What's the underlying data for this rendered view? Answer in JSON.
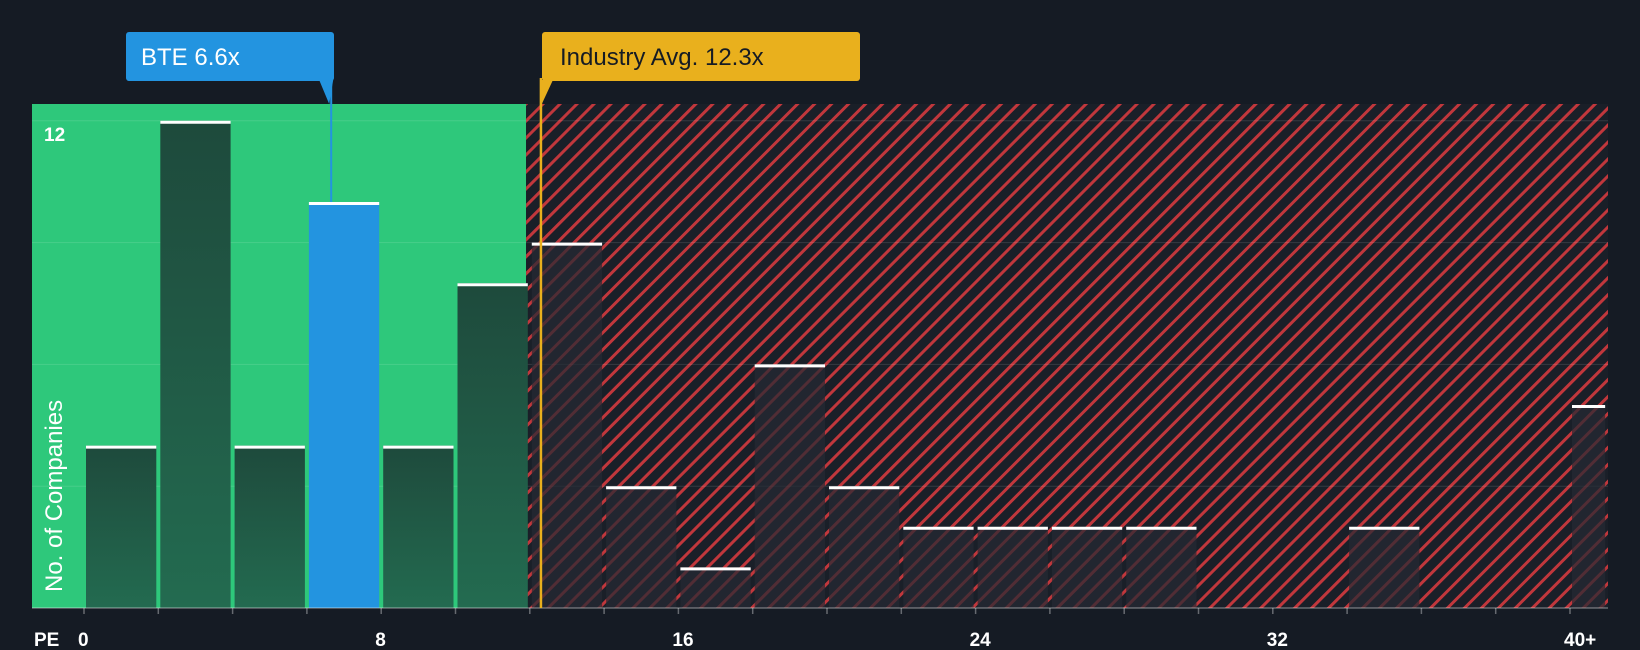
{
  "chart_data": {
    "type": "bar",
    "title": "",
    "xlabel": "PE",
    "ylabel": "No. of Companies",
    "xlim": [
      0,
      41
    ],
    "ylim": [
      0,
      12.4
    ],
    "x_ticks": [
      {
        "value": 0,
        "label": "0"
      },
      {
        "value": 8,
        "label": "8"
      },
      {
        "value": 16,
        "label": "16"
      },
      {
        "value": 24,
        "label": "24"
      },
      {
        "value": 32,
        "label": "32"
      },
      {
        "value": 40,
        "label": "40+"
      }
    ],
    "y_ticks": [
      {
        "value": 12,
        "label": "12"
      }
    ],
    "bin_width": 2,
    "bins": [
      {
        "start": 0,
        "end": 2,
        "count": 4
      },
      {
        "start": 2,
        "end": 4,
        "count": 12
      },
      {
        "start": 4,
        "end": 6,
        "count": 4
      },
      {
        "start": 6,
        "end": 8,
        "count": 10,
        "highlight": true
      },
      {
        "start": 8,
        "end": 10,
        "count": 4
      },
      {
        "start": 10,
        "end": 12,
        "count": 8
      },
      {
        "start": 12,
        "end": 14,
        "count": 9
      },
      {
        "start": 14,
        "end": 16,
        "count": 3
      },
      {
        "start": 16,
        "end": 18,
        "count": 1
      },
      {
        "start": 18,
        "end": 20,
        "count": 6
      },
      {
        "start": 20,
        "end": 22,
        "count": 3
      },
      {
        "start": 22,
        "end": 24,
        "count": 2
      },
      {
        "start": 24,
        "end": 26,
        "count": 2
      },
      {
        "start": 26,
        "end": 28,
        "count": 2
      },
      {
        "start": 28,
        "end": 30,
        "count": 2
      },
      {
        "start": 34,
        "end": 36,
        "count": 2
      },
      {
        "start": 40,
        "end": 41,
        "count": 5
      }
    ],
    "company": {
      "label": "BTE 6.6x",
      "value": 6.6
    },
    "industry_avg": {
      "label": "Industry Avg. 12.3x",
      "value": 12.3
    },
    "fair_zone_end": 11.9,
    "colors": {
      "background": "#151b24",
      "fair_zone": "#2ec87b",
      "fair_bar": "#1e4a3c",
      "company_bar": "#2394e0",
      "over_zone_stripe": "#c1373c",
      "over_zone_bg": "#1a1f28",
      "over_bar": "#252a33",
      "industry": "#e9b01d",
      "bar_cap": "#ffffff"
    }
  }
}
